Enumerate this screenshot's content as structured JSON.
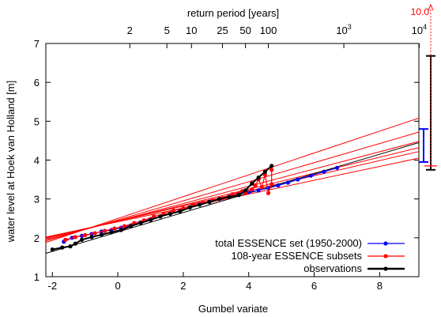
{
  "chart_data": {
    "type": "scatter",
    "xlabel": "Gumbel variate",
    "ylabel": "water level at Hoek van Holland [m]",
    "x2label": "return period [years]",
    "xlim": [
      -2.2,
      9.2
    ],
    "ylim": [
      1,
      7
    ],
    "xticks": [
      -2,
      0,
      2,
      4,
      6,
      8
    ],
    "yticks": [
      1,
      2,
      3,
      4,
      5,
      6,
      7
    ],
    "x2ticks": [
      {
        "label": "2",
        "period": 2
      },
      {
        "label": "5",
        "period": 5
      },
      {
        "label": "10",
        "period": 10
      },
      {
        "label": "25",
        "period": 25
      },
      {
        "label": "50",
        "period": 50
      },
      {
        "label": "100",
        "period": 100
      },
      {
        "label": "10",
        "sup": "3",
        "period": 1000
      },
      {
        "label": "10",
        "sup": "4",
        "period": 10000
      }
    ],
    "grid": false,
    "legend_position": "bottom-right",
    "series": [
      {
        "name": "total ESSENCE set (1950-2000)",
        "color": "#0000ff",
        "points": [
          {
            "x": -1.65,
            "y": 1.9
          },
          {
            "x": -1.4,
            "y": 2.0
          },
          {
            "x": -1.1,
            "y": 2.05
          },
          {
            "x": -0.8,
            "y": 2.1
          },
          {
            "x": -0.5,
            "y": 2.16
          },
          {
            "x": -0.2,
            "y": 2.2
          },
          {
            "x": 0.1,
            "y": 2.26
          },
          {
            "x": 0.4,
            "y": 2.32
          },
          {
            "x": 0.7,
            "y": 2.4
          },
          {
            "x": 1.0,
            "y": 2.48
          },
          {
            "x": 1.3,
            "y": 2.55
          },
          {
            "x": 1.6,
            "y": 2.62
          },
          {
            "x": 1.9,
            "y": 2.7
          },
          {
            "x": 2.2,
            "y": 2.78
          },
          {
            "x": 2.5,
            "y": 2.86
          },
          {
            "x": 2.8,
            "y": 2.93
          },
          {
            "x": 3.1,
            "y": 3.0
          },
          {
            "x": 3.4,
            "y": 3.06
          },
          {
            "x": 3.7,
            "y": 3.12
          },
          {
            "x": 4.0,
            "y": 3.18
          },
          {
            "x": 4.3,
            "y": 3.22
          },
          {
            "x": 4.6,
            "y": 3.28
          },
          {
            "x": 4.9,
            "y": 3.35
          },
          {
            "x": 5.2,
            "y": 3.42
          },
          {
            "x": 5.5,
            "y": 3.5
          },
          {
            "x": 5.9,
            "y": 3.6
          },
          {
            "x": 6.3,
            "y": 3.7
          },
          {
            "x": 6.7,
            "y": 3.8
          }
        ]
      },
      {
        "name": "108-year ESSENCE subsets",
        "color": "#ff0000",
        "points": [
          {
            "x": -1.6,
            "y": 1.95
          },
          {
            "x": -1.3,
            "y": 2.02
          },
          {
            "x": -1.0,
            "y": 2.07
          },
          {
            "x": -0.7,
            "y": 2.12
          },
          {
            "x": -0.4,
            "y": 2.18
          },
          {
            "x": -0.1,
            "y": 2.24
          },
          {
            "x": 0.2,
            "y": 2.3
          },
          {
            "x": 0.5,
            "y": 2.38
          },
          {
            "x": 0.8,
            "y": 2.45
          },
          {
            "x": 1.1,
            "y": 2.55
          },
          {
            "x": 1.4,
            "y": 2.62
          },
          {
            "x": 1.7,
            "y": 2.7
          },
          {
            "x": 2.0,
            "y": 2.76
          },
          {
            "x": 2.3,
            "y": 2.85
          },
          {
            "x": 2.6,
            "y": 2.9
          },
          {
            "x": 2.9,
            "y": 2.96
          },
          {
            "x": 3.2,
            "y": 3.02
          },
          {
            "x": 3.5,
            "y": 3.12
          },
          {
            "x": 3.8,
            "y": 3.2
          },
          {
            "x": 4.1,
            "y": 3.25
          },
          {
            "x": 4.4,
            "y": 3.3
          },
          {
            "x": 4.7,
            "y": 3.38
          },
          {
            "x": 3.9,
            "y": 3.15
          },
          {
            "x": 4.2,
            "y": 3.35
          },
          {
            "x": 4.6,
            "y": 3.15
          },
          {
            "x": 4.3,
            "y": 3.5
          },
          {
            "x": 4.5,
            "y": 3.62
          },
          {
            "x": 4.7,
            "y": 3.75
          }
        ],
        "fit_lines": [
          {
            "y_at_xmin": 1.88,
            "y_at_xmax": 5.08
          },
          {
            "y_at_xmin": 1.92,
            "y_at_xmax": 4.72
          },
          {
            "y_at_xmin": 1.95,
            "y_at_xmax": 4.48
          },
          {
            "y_at_xmin": 1.98,
            "y_at_xmax": 4.32
          },
          {
            "y_at_xmin": 2.0,
            "y_at_xmax": 4.22
          },
          {
            "y_at_xmin": 2.02,
            "y_at_xmax": 4.05
          }
        ]
      },
      {
        "name": "observations",
        "color": "#000000",
        "points": [
          {
            "x": -2.0,
            "y": 1.7
          },
          {
            "x": -1.7,
            "y": 1.75
          },
          {
            "x": -1.45,
            "y": 1.78
          },
          {
            "x": -1.3,
            "y": 1.85
          },
          {
            "x": -1.1,
            "y": 1.95
          },
          {
            "x": -0.8,
            "y": 2.02
          },
          {
            "x": -0.5,
            "y": 2.08
          },
          {
            "x": -0.2,
            "y": 2.14
          },
          {
            "x": 0.1,
            "y": 2.2
          },
          {
            "x": 0.4,
            "y": 2.3
          },
          {
            "x": 0.7,
            "y": 2.38
          },
          {
            "x": 1.0,
            "y": 2.46
          },
          {
            "x": 1.3,
            "y": 2.55
          },
          {
            "x": 1.6,
            "y": 2.62
          },
          {
            "x": 1.9,
            "y": 2.68
          },
          {
            "x": 2.2,
            "y": 2.78
          },
          {
            "x": 2.5,
            "y": 2.85
          },
          {
            "x": 2.8,
            "y": 2.92
          },
          {
            "x": 3.1,
            "y": 3.0
          },
          {
            "x": 3.4,
            "y": 3.05
          },
          {
            "x": 3.7,
            "y": 3.1
          },
          {
            "x": 3.9,
            "y": 3.22
          },
          {
            "x": 4.1,
            "y": 3.4
          },
          {
            "x": 4.3,
            "y": 3.55
          },
          {
            "x": 4.5,
            "y": 3.7
          },
          {
            "x": 4.7,
            "y": 3.85
          }
        ],
        "fit_lines": [
          {
            "y_at_xmin": 1.6,
            "y_at_xmax": 4.45
          }
        ]
      }
    ],
    "error_bars": [
      {
        "color": "#000000",
        "low": 3.75,
        "high": 6.68
      },
      {
        "color": "#0000ff",
        "low": 3.95,
        "high": 4.8
      },
      {
        "color": "#ff0000",
        "low": 3.85,
        "high": 7.0,
        "arrow_label": "10.0"
      }
    ]
  }
}
